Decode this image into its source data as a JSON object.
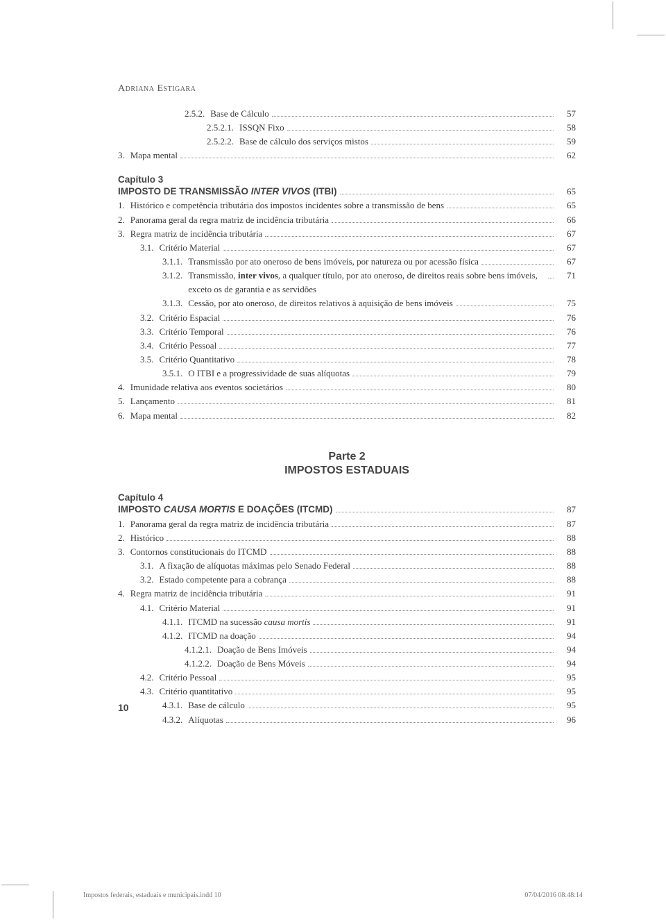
{
  "author": "Adriana Estigara",
  "section1": [
    {
      "lvl": 3,
      "num": "2.5.2.",
      "text": "Base de Cálculo",
      "page": "57"
    },
    {
      "lvl": 4,
      "num": "2.5.2.1.",
      "text": "ISSQN Fixo",
      "page": "58"
    },
    {
      "lvl": 4,
      "num": "2.5.2.2.",
      "text": "Base de cálculo dos serviços mistos",
      "page": "59"
    },
    {
      "lvl": 0,
      "num": "3.",
      "text": "Mapa mental",
      "page": "62"
    }
  ],
  "chapter3": {
    "head": "Capítulo 3",
    "title_prefix": "IMPOSTO DE TRANSMISSÃO ",
    "title_italic": "INTER VIVOS",
    "title_suffix": " (ITBI)",
    "page": "65"
  },
  "section2": [
    {
      "lvl": 0,
      "num": "1.",
      "text": "Histórico e competência tributária dos impostos incidentes sobre a transmissão de bens",
      "page": "65",
      "wrap": true
    },
    {
      "lvl": 0,
      "num": "2.",
      "text": "Panorama geral da regra matriz de incidência tributária",
      "page": "66"
    },
    {
      "lvl": 0,
      "num": "3.",
      "text": "Regra matriz de incidência tributária",
      "page": "67"
    },
    {
      "lvl": 1,
      "num": "3.1.",
      "text": "Critério Material",
      "page": "67"
    },
    {
      "lvl": 2,
      "num": "3.1.1.",
      "text": "Transmissão por ato oneroso de bens imóveis, por natureza ou por acessão física",
      "page": "67",
      "wrap": true
    },
    {
      "lvl": 2,
      "num": "3.1.2.",
      "text_prefix": "Transmissão, ",
      "bold": "inter vivos",
      "text_suffix": ", a qualquer título, por ato oneroso, de direitos reais sobre bens imóveis, exceto os de garantia e as servidões",
      "page": "71",
      "wrap": true
    },
    {
      "lvl": 2,
      "num": "3.1.3.",
      "text": "Cessão, por ato oneroso, de direitos relativos à aquisição de bens imóveis",
      "page": "75",
      "wrap": true
    },
    {
      "lvl": 1,
      "num": "3.2.",
      "text": "Critério Espacial",
      "page": "76"
    },
    {
      "lvl": 1,
      "num": "3.3.",
      "text": "Critério Temporal",
      "page": "76"
    },
    {
      "lvl": 1,
      "num": "3.4.",
      "text": "Critério Pessoal",
      "page": "77"
    },
    {
      "lvl": 1,
      "num": "3.5.",
      "text": "Critério Quantitativo",
      "page": "78"
    },
    {
      "lvl": 2,
      "num": "3.5.1.",
      "text": "O ITBI e a progressividade de suas alíquotas",
      "page": "79"
    },
    {
      "lvl": 0,
      "num": "4.",
      "text": "Imunidade relativa aos eventos societários",
      "page": "80"
    },
    {
      "lvl": 0,
      "num": "5.",
      "text": "Lançamento",
      "page": "81"
    },
    {
      "lvl": 0,
      "num": "6.",
      "text": "Mapa mental",
      "page": "82"
    }
  ],
  "part2": {
    "line1": "Parte 2",
    "line2": "IMPOSTOS ESTADUAIS"
  },
  "chapter4": {
    "head": "Capítulo 4",
    "title_prefix": "IMPOSTO ",
    "title_italic": "CAUSA MORTIS",
    "title_suffix": " E DOAÇÕES (ITCMD)",
    "page": "87"
  },
  "section3": [
    {
      "lvl": 0,
      "num": "1.",
      "text": "Panorama geral da regra matriz de incidência tributária",
      "page": "87"
    },
    {
      "lvl": 0,
      "num": "2.",
      "text": "Histórico",
      "page": "88"
    },
    {
      "lvl": 0,
      "num": "3.",
      "text": "Contornos constitucionais do ITCMD",
      "page": "88"
    },
    {
      "lvl": 1,
      "num": "3.1.",
      "text": "A fixação de alíquotas máximas pelo Senado Federal",
      "page": "88"
    },
    {
      "lvl": 1,
      "num": "3.2.",
      "text": "Estado competente para a cobrança",
      "page": "88"
    },
    {
      "lvl": 0,
      "num": "4.",
      "text": "Regra matriz de incidência tributária",
      "page": "91"
    },
    {
      "lvl": 1,
      "num": "4.1.",
      "text": "Critério Material",
      "page": "91"
    },
    {
      "lvl": 2,
      "num": "4.1.1.",
      "text_prefix": "ITCMD na sucessão ",
      "italic": "causa mortis",
      "page": "91"
    },
    {
      "lvl": 2,
      "num": "4.1.2.",
      "text": "ITCMD na doação",
      "page": "94"
    },
    {
      "lvl": 3,
      "num": "4.1.2.1.",
      "text": "Doação de Bens Imóveis",
      "page": "94"
    },
    {
      "lvl": 3,
      "num": "4.1.2.2.",
      "text": "Doação de Bens Móveis",
      "page": "94"
    },
    {
      "lvl": 1,
      "num": "4.2.",
      "text": "Critério Pessoal",
      "page": "95"
    },
    {
      "lvl": 1,
      "num": "4.3.",
      "text": "Critério quantitativo",
      "page": "95"
    },
    {
      "lvl": 2,
      "num": "4.3.1.",
      "text": "Base de cálculo",
      "page": "95"
    },
    {
      "lvl": 2,
      "num": "4.3.2.",
      "text": "Alíquotas",
      "page": "96"
    }
  ],
  "page_number": "10",
  "footer": {
    "left": "Impostos federais, estaduais e municipais.indd   10",
    "right": "07/04/2016   08:48:14"
  }
}
